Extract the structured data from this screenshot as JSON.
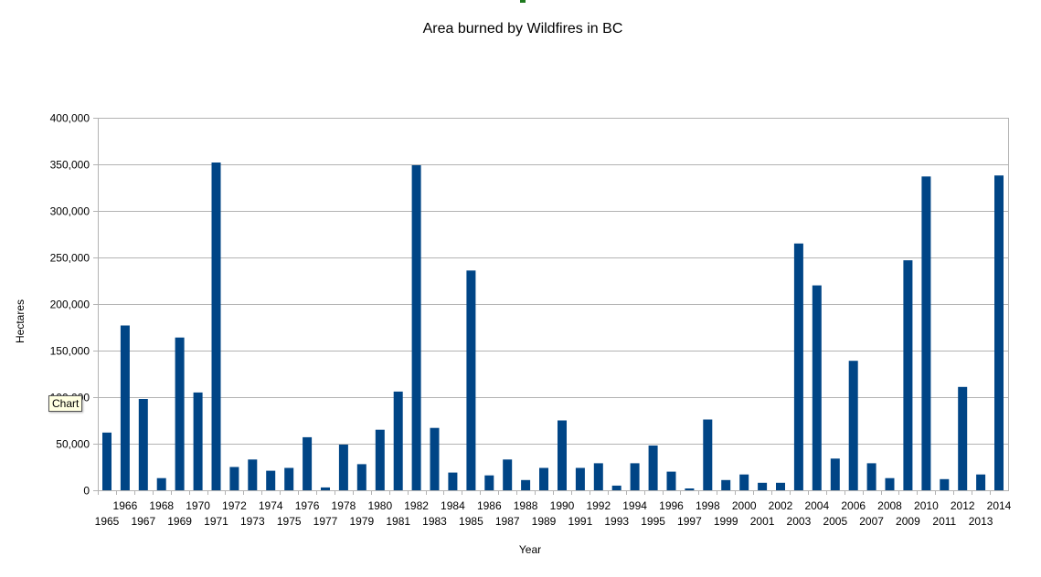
{
  "tooltip_text": "Chart",
  "colors": {
    "bar": "#004586",
    "grid": "#b3b3b3",
    "axis": "#b3b3b3"
  },
  "chart_data": {
    "type": "bar",
    "title": "Area burned by Wildfires in BC",
    "xlabel": "Year",
    "ylabel": "Hectares",
    "ylim": [
      0,
      400000
    ],
    "yticks": [
      0,
      50000,
      100000,
      150000,
      200000,
      250000,
      300000,
      350000,
      400000
    ],
    "ytick_labels": [
      "0",
      "50,000",
      "100,000",
      "150,000",
      "200,000",
      "250,000",
      "300,000",
      "350,000",
      "400,000"
    ],
    "grid": true,
    "categories": [
      "1965",
      "1966",
      "1967",
      "1968",
      "1969",
      "1970",
      "1971",
      "1972",
      "1973",
      "1974",
      "1975",
      "1976",
      "1977",
      "1978",
      "1979",
      "1980",
      "1981",
      "1982",
      "1983",
      "1984",
      "1985",
      "1986",
      "1987",
      "1988",
      "1989",
      "1990",
      "1991",
      "1992",
      "1993",
      "1994",
      "1995",
      "1996",
      "1997",
      "1998",
      "1999",
      "2000",
      "2001",
      "2002",
      "2003",
      "2004",
      "2005",
      "2006",
      "2007",
      "2008",
      "2009",
      "2010",
      "2011",
      "2012",
      "2013",
      "2014"
    ],
    "values": [
      62000,
      177000,
      98000,
      13000,
      164000,
      105000,
      352000,
      25000,
      33000,
      21000,
      24000,
      57000,
      3000,
      49000,
      28000,
      65000,
      106000,
      349000,
      67000,
      19000,
      236000,
      16000,
      33000,
      11000,
      24000,
      75000,
      24000,
      29000,
      5000,
      29000,
      48000,
      20000,
      2000,
      76000,
      11000,
      17000,
      8000,
      8000,
      265000,
      220000,
      34000,
      139000,
      29000,
      13000,
      247000,
      337000,
      12000,
      111000,
      17000,
      338000
    ]
  }
}
